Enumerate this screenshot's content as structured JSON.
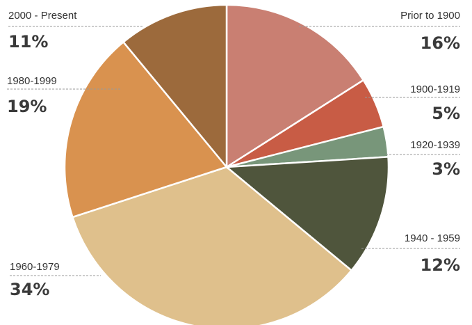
{
  "chart_data": {
    "type": "pie",
    "categories": [
      "Prior to 1900",
      "1900-1919",
      "1920-1939",
      "1940 - 1959",
      "1960-1979",
      "1980-1999",
      "2000 - Present"
    ],
    "values": [
      16,
      5,
      3,
      12,
      34,
      19,
      11
    ],
    "value_labels": [
      "16%",
      "5%",
      "3%",
      "12%",
      "34%",
      "19%",
      "11%"
    ],
    "colors": [
      "#c97f72",
      "#c85c45",
      "#78967a",
      "#4f553c",
      "#dfc08c",
      "#d9924f",
      "#9c6a3c"
    ]
  }
}
